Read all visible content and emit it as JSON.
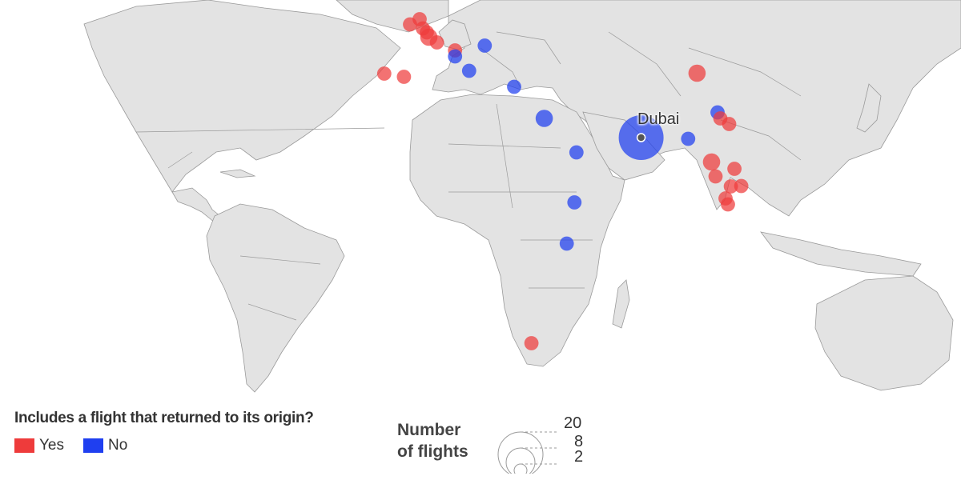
{
  "map": {
    "hub": {
      "name": "Dubai",
      "lon": 55.3,
      "lat": 25.2
    },
    "colors": {
      "yes": "#ee3b3b",
      "no": "#1f3ff0",
      "land": "#e3e3e3",
      "border": "#9a9a9a"
    },
    "bubbles": [
      {
        "returned": "yes",
        "lon": -8.6,
        "lat": 41.2,
        "flights": 2
      },
      {
        "returned": "yes",
        "lon": -3.7,
        "lat": 40.4,
        "flights": 2
      },
      {
        "returned": "yes",
        "lon": -2.2,
        "lat": 53.5,
        "flights": 2
      },
      {
        "returned": "yes",
        "lon": 0.2,
        "lat": 54.8,
        "flights": 2
      },
      {
        "returned": "yes",
        "lon": 1.0,
        "lat": 52.5,
        "flights": 2
      },
      {
        "returned": "yes",
        "lon": 2.0,
        "lat": 51.5,
        "flights": 2
      },
      {
        "returned": "yes",
        "lon": 2.5,
        "lat": 50.3,
        "flights": 3
      },
      {
        "returned": "yes",
        "lon": 4.5,
        "lat": 49.0,
        "flights": 2
      },
      {
        "returned": "yes",
        "lon": 9.0,
        "lat": 47.0,
        "flights": 2
      },
      {
        "returned": "no",
        "lon": 9.0,
        "lat": 45.5,
        "flights": 2
      },
      {
        "returned": "no",
        "lon": 16.4,
        "lat": 48.2,
        "flights": 2
      },
      {
        "returned": "no",
        "lon": 12.5,
        "lat": 41.9,
        "flights": 2
      },
      {
        "returned": "no",
        "lon": 23.7,
        "lat": 37.9,
        "flights": 2
      },
      {
        "returned": "no",
        "lon": 31.2,
        "lat": 30.0,
        "flights": 3
      },
      {
        "returned": "no",
        "lon": 39.2,
        "lat": 21.5,
        "flights": 2
      },
      {
        "returned": "no",
        "lon": 38.7,
        "lat": 9.0,
        "flights": 2
      },
      {
        "returned": "no",
        "lon": 36.8,
        "lat": -1.3,
        "flights": 2
      },
      {
        "returned": "yes",
        "lon": 28.0,
        "lat": -26.2,
        "flights": 2
      },
      {
        "returned": "no",
        "lon": 55.3,
        "lat": 25.2,
        "flights": 20
      },
      {
        "returned": "no",
        "lon": 67.0,
        "lat": 24.9,
        "flights": 2
      },
      {
        "returned": "yes",
        "lon": 69.2,
        "lat": 41.3,
        "flights": 3
      },
      {
        "returned": "no",
        "lon": 74.3,
        "lat": 31.5,
        "flights": 2
      },
      {
        "returned": "yes",
        "lon": 75.0,
        "lat": 30.0,
        "flights": 2
      },
      {
        "returned": "yes",
        "lon": 77.2,
        "lat": 28.6,
        "flights": 2
      },
      {
        "returned": "yes",
        "lon": 72.8,
        "lat": 19.1,
        "flights": 3
      },
      {
        "returned": "yes",
        "lon": 73.8,
        "lat": 15.5,
        "flights": 2
      },
      {
        "returned": "yes",
        "lon": 78.5,
        "lat": 17.4,
        "flights": 2
      },
      {
        "returned": "yes",
        "lon": 80.2,
        "lat": 13.1,
        "flights": 2
      },
      {
        "returned": "yes",
        "lon": 77.6,
        "lat": 13.0,
        "flights": 2
      },
      {
        "returned": "yes",
        "lon": 76.3,
        "lat": 10.0,
        "flights": 2
      },
      {
        "returned": "yes",
        "lon": 76.9,
        "lat": 8.5,
        "flights": 2
      }
    ]
  },
  "legend": {
    "title": "Includes a flight that returned to its origin?",
    "yes_label": "Yes",
    "no_label": "No",
    "size_title_line1": "Number",
    "size_title_line2": "of flights",
    "size_ticks": [
      "20",
      "8",
      "2"
    ]
  }
}
